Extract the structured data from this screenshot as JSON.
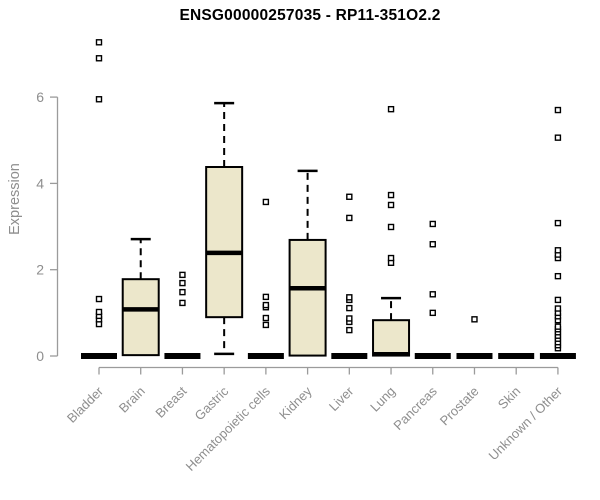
{
  "chart_data": {
    "type": "boxplot",
    "title": "ENSG00000257035 - RP11-351O2.2",
    "ylabel": "Expression",
    "xlabel": "",
    "yticks": [
      0,
      2,
      4,
      6
    ],
    "ylim": [
      0,
      7.5
    ],
    "grid": false,
    "legend": false,
    "colors": {
      "box_fill": "#ECE7CB",
      "box_stroke": "#000000",
      "whisker": "#000000",
      "axis": "#9b9b9b",
      "tick_text": "#8e8e8e",
      "title_text": "#000000",
      "outlier_fill": "#ffffff"
    },
    "categories": [
      "Bladder",
      "Brain",
      "Breast",
      "Gastric",
      "Hematopoietic cells",
      "Kidney",
      "Liver",
      "Lung",
      "Pancreas",
      "Prostate",
      "Skin",
      "Unknown / Other"
    ],
    "series": [
      {
        "category": "Bladder",
        "q1": 0,
        "median": 0,
        "q3": 0,
        "whisker_low": 0,
        "whisker_high": 0,
        "outliers": [
          0.74,
          0.85,
          0.93,
          1.02,
          1.32,
          5.95,
          6.9,
          7.27
        ]
      },
      {
        "category": "Brain",
        "q1": 0.02,
        "median": 1.08,
        "q3": 1.78,
        "whisker_low": 0.02,
        "whisker_high": 2.71,
        "outliers": []
      },
      {
        "category": "Breast",
        "q1": 0,
        "median": 0,
        "q3": 0,
        "whisker_low": 0,
        "whisker_high": 0,
        "outliers": [
          1.23,
          1.48,
          1.69,
          1.88
        ]
      },
      {
        "category": "Gastric",
        "q1": 0.9,
        "median": 2.39,
        "q3": 4.38,
        "whisker_low": 0.05,
        "whisker_high": 5.86,
        "outliers": []
      },
      {
        "category": "Hematopoietic cells",
        "q1": 0,
        "median": 0,
        "q3": 0,
        "whisker_low": 0,
        "whisker_high": 0,
        "outliers": [
          0.72,
          0.88,
          1.13,
          1.18,
          1.37,
          3.57
        ]
      },
      {
        "category": "Kidney",
        "q1": 0.01,
        "median": 1.57,
        "q3": 2.69,
        "whisker_low": 0.01,
        "whisker_high": 4.29,
        "outliers": []
      },
      {
        "category": "Liver",
        "q1": 0,
        "median": 0,
        "q3": 0,
        "whisker_low": 0,
        "whisker_high": 0,
        "outliers": [
          0.6,
          0.79,
          0.87,
          1.11,
          1.3,
          1.36,
          3.2,
          3.69
        ]
      },
      {
        "category": "Lung",
        "q1": 0.01,
        "median": 0.04,
        "q3": 0.83,
        "whisker_low": 0.01,
        "whisker_high": 1.34,
        "outliers": [
          2.16,
          2.27,
          2.99,
          3.5,
          3.73,
          5.72
        ]
      },
      {
        "category": "Pancreas",
        "q1": 0,
        "median": 0,
        "q3": 0,
        "whisker_low": 0,
        "whisker_high": 0,
        "outliers": [
          1.0,
          1.43,
          2.59,
          3.06
        ]
      },
      {
        "category": "Prostate",
        "q1": 0,
        "median": 0,
        "q3": 0,
        "whisker_low": 0,
        "whisker_high": 0,
        "outliers": [
          0.85
        ]
      },
      {
        "category": "Skin",
        "q1": 0,
        "median": 0,
        "q3": 0,
        "whisker_low": 0,
        "whisker_high": 0,
        "outliers": []
      },
      {
        "category": "Unknown / Other",
        "q1": 0,
        "median": 0,
        "q3": 0,
        "whisker_low": 0,
        "whisker_high": 0,
        "outliers": [
          0.18,
          0.25,
          0.32,
          0.4,
          0.47,
          0.55,
          0.62,
          0.68,
          0.83,
          0.92,
          1.0,
          1.1,
          1.3,
          1.85,
          2.27,
          2.35,
          2.45,
          3.08,
          5.06,
          5.7
        ]
      }
    ]
  }
}
